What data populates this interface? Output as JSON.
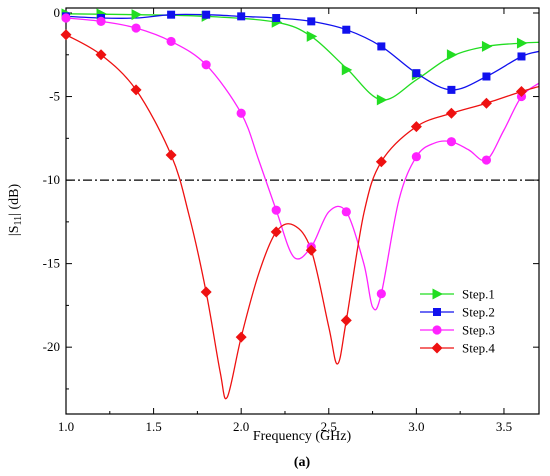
{
  "chart_data": {
    "type": "line",
    "xlabel": "Frequency (GHz)",
    "ylabel_main": "|S",
    "ylabel_sub": "11",
    "ylabel_tail": "| (dB)",
    "caption": "(a)",
    "xlim": [
      1.0,
      3.7
    ],
    "ylim": [
      -24,
      0.3
    ],
    "xticks": [
      "1.0",
      "1.5",
      "2.0",
      "2.5",
      "3.0",
      "3.5"
    ],
    "xtick_values": [
      1.0,
      1.5,
      2.0,
      2.5,
      3.0,
      3.5
    ],
    "yticks": [
      "0",
      "-5",
      "-10",
      "-15",
      "-20"
    ],
    "ytick_values": [
      0,
      -5,
      -10,
      -15,
      -20
    ],
    "reference_line": -10,
    "legend_position": "bottom-right",
    "series": [
      {
        "name": "Step.1",
        "color": "#22dd22",
        "marker": "triangle-right",
        "curve": [
          [
            1.0,
            -0.05
          ],
          [
            1.4,
            -0.1
          ],
          [
            1.8,
            -0.2
          ],
          [
            2.2,
            -0.55
          ],
          [
            2.4,
            -1.4
          ],
          [
            2.6,
            -3.3
          ],
          [
            2.8,
            -5.2
          ],
          [
            3.0,
            -4.0
          ],
          [
            3.2,
            -2.6
          ],
          [
            3.4,
            -2.0
          ],
          [
            3.6,
            -1.8
          ],
          [
            3.7,
            -1.75
          ]
        ],
        "markers": [
          [
            1.0,
            -0.05
          ],
          [
            1.2,
            -0.05
          ],
          [
            1.4,
            -0.1
          ],
          [
            1.8,
            -0.2
          ],
          [
            2.2,
            -0.55
          ],
          [
            2.4,
            -1.4
          ],
          [
            2.6,
            -3.4
          ],
          [
            2.8,
            -5.2
          ],
          [
            3.0,
            -3.7
          ],
          [
            3.2,
            -2.5
          ],
          [
            3.4,
            -2.0
          ],
          [
            3.6,
            -1.8
          ]
        ]
      },
      {
        "name": "Step.2",
        "color": "#1111ee",
        "marker": "square",
        "curve": [
          [
            1.0,
            -0.2
          ],
          [
            1.2,
            -0.3
          ],
          [
            1.4,
            -0.3
          ],
          [
            1.6,
            -0.1
          ],
          [
            1.8,
            -0.1
          ],
          [
            2.0,
            -0.2
          ],
          [
            2.2,
            -0.3
          ],
          [
            2.4,
            -0.5
          ],
          [
            2.6,
            -1.0
          ],
          [
            2.8,
            -2.0
          ],
          [
            3.0,
            -3.6
          ],
          [
            3.2,
            -4.6
          ],
          [
            3.4,
            -3.8
          ],
          [
            3.6,
            -2.6
          ],
          [
            3.7,
            -2.3
          ]
        ],
        "markers": [
          [
            1.0,
            -0.2
          ],
          [
            1.2,
            -0.3
          ],
          [
            1.6,
            -0.1
          ],
          [
            1.8,
            -0.1
          ],
          [
            2.0,
            -0.2
          ],
          [
            2.2,
            -0.3
          ],
          [
            2.4,
            -0.5
          ],
          [
            2.6,
            -1.0
          ],
          [
            2.8,
            -2.0
          ],
          [
            3.0,
            -3.6
          ],
          [
            3.2,
            -4.6
          ],
          [
            3.4,
            -3.8
          ],
          [
            3.6,
            -2.6
          ]
        ]
      },
      {
        "name": "Step.3",
        "color": "#ff22ff",
        "marker": "circle",
        "curve": [
          [
            1.0,
            -0.3
          ],
          [
            1.2,
            -0.5
          ],
          [
            1.4,
            -0.9
          ],
          [
            1.6,
            -1.7
          ],
          [
            1.8,
            -3.1
          ],
          [
            2.0,
            -6.0
          ],
          [
            2.1,
            -8.8
          ],
          [
            2.2,
            -11.8
          ],
          [
            2.3,
            -14.6
          ],
          [
            2.4,
            -14.0
          ],
          [
            2.5,
            -11.9
          ],
          [
            2.6,
            -11.9
          ],
          [
            2.7,
            -15.0
          ],
          [
            2.75,
            -17.6
          ],
          [
            2.8,
            -16.8
          ],
          [
            2.9,
            -11.2
          ],
          [
            3.0,
            -8.6
          ],
          [
            3.1,
            -7.8
          ],
          [
            3.2,
            -7.7
          ],
          [
            3.3,
            -8.2
          ],
          [
            3.4,
            -8.8
          ],
          [
            3.5,
            -7.0
          ],
          [
            3.6,
            -5.0
          ],
          [
            3.7,
            -4.2
          ]
        ],
        "markers": [
          [
            1.0,
            -0.3
          ],
          [
            1.2,
            -0.5
          ],
          [
            1.4,
            -0.9
          ],
          [
            1.6,
            -1.7
          ],
          [
            1.8,
            -3.1
          ],
          [
            2.0,
            -6.0
          ],
          [
            2.2,
            -11.8
          ],
          [
            2.4,
            -14.0
          ],
          [
            2.6,
            -11.9
          ],
          [
            2.8,
            -16.8
          ],
          [
            3.0,
            -8.6
          ],
          [
            3.2,
            -7.7
          ],
          [
            3.4,
            -8.8
          ],
          [
            3.6,
            -5.0
          ]
        ]
      },
      {
        "name": "Step.4",
        "color": "#ee1111",
        "marker": "diamond",
        "curve": [
          [
            1.0,
            -1.3
          ],
          [
            1.2,
            -2.5
          ],
          [
            1.4,
            -4.6
          ],
          [
            1.6,
            -8.5
          ],
          [
            1.7,
            -12.0
          ],
          [
            1.8,
            -16.7
          ],
          [
            1.88,
            -21.5
          ],
          [
            1.92,
            -23.0
          ],
          [
            2.0,
            -19.4
          ],
          [
            2.1,
            -15.6
          ],
          [
            2.2,
            -13.1
          ],
          [
            2.3,
            -12.7
          ],
          [
            2.4,
            -14.2
          ],
          [
            2.5,
            -18.8
          ],
          [
            2.55,
            -21.0
          ],
          [
            2.6,
            -18.4
          ],
          [
            2.7,
            -12.0
          ],
          [
            2.8,
            -8.9
          ],
          [
            3.0,
            -6.8
          ],
          [
            3.2,
            -6.0
          ],
          [
            3.4,
            -5.4
          ],
          [
            3.6,
            -4.7
          ],
          [
            3.7,
            -4.4
          ]
        ],
        "markers": [
          [
            1.0,
            -1.3
          ],
          [
            1.2,
            -2.5
          ],
          [
            1.4,
            -4.6
          ],
          [
            1.6,
            -8.5
          ],
          [
            1.8,
            -16.7
          ],
          [
            2.0,
            -19.4
          ],
          [
            2.2,
            -13.1
          ],
          [
            2.4,
            -14.2
          ],
          [
            2.6,
            -18.4
          ],
          [
            2.8,
            -8.9
          ],
          [
            3.0,
            -6.8
          ],
          [
            3.2,
            -6.0
          ],
          [
            3.4,
            -5.4
          ],
          [
            3.6,
            -4.7
          ]
        ]
      }
    ]
  }
}
